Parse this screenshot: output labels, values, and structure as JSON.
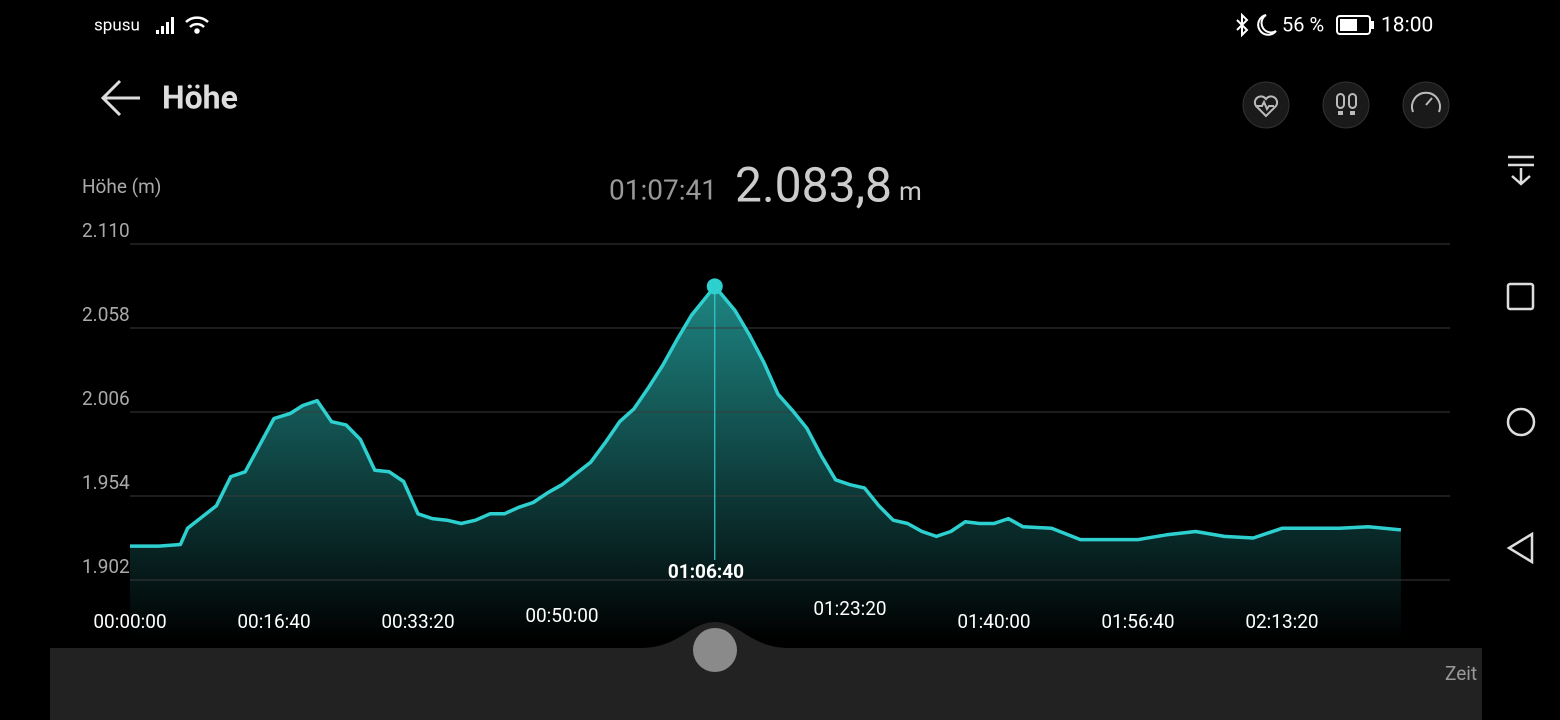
{
  "status_bar": {
    "carrier": "spusu",
    "battery": "56 %",
    "time": "18:00"
  },
  "header": {
    "title": "Höhe"
  },
  "readout": {
    "time_label": "01:07:41",
    "value_label": "2.083,8",
    "unit": "m"
  },
  "chart_data": {
    "type": "area",
    "y_label": "Höhe (m)",
    "x_label": "Zeit",
    "color": "#2ecfcf",
    "x": [
      0,
      200,
      350,
      400,
      600,
      700,
      800,
      1000,
      1111,
      1200,
      1300,
      1400,
      1500,
      1600,
      1700,
      1800,
      1900,
      2000,
      2100,
      2200,
      2300,
      2400,
      2500,
      2600,
      2700,
      2800,
      2900,
      3000,
      3100,
      3200,
      3300,
      3400,
      3500,
      3600,
      3700,
      3800,
      3900,
      4000,
      4061,
      4200,
      4300,
      4400,
      4500,
      4600,
      4700,
      4800,
      4900,
      5000,
      5100,
      5200,
      5300,
      5400,
      5500,
      5600,
      5700,
      5800,
      5900,
      6000,
      6100,
      6200,
      6400,
      6600,
      6800,
      7000,
      7200,
      7400,
      7600,
      7800,
      8000,
      8200,
      8400,
      8600,
      8826
    ],
    "values": [
      1923,
      1923,
      1924,
      1934,
      1948,
      1966,
      1969,
      2002,
      2005,
      2010,
      2013,
      2000,
      1998,
      1989,
      1970,
      1969,
      1963,
      1943,
      1940,
      1939,
      1937,
      1939,
      1943,
      1943,
      1947,
      1950,
      1956,
      1961,
      1968,
      1975,
      1987,
      2000,
      2008,
      2021,
      2035,
      2051,
      2066,
      2077,
      2083.8,
      2069,
      2054,
      2037,
      2017,
      2007,
      1996,
      1979,
      1964,
      1961,
      1959,
      1948,
      1939,
      1937,
      1932,
      1929,
      1932,
      1938,
      1937,
      1937,
      1940,
      1935,
      1934,
      1927,
      1927,
      1927,
      1930,
      1932,
      1929,
      1928,
      1934,
      1934,
      1934,
      1935,
      1933
    ],
    "xlim": [
      0,
      9167
    ],
    "ylim": [
      1902,
      2110
    ],
    "xticks": [
      {
        "value": 0,
        "label": "00:00:00"
      },
      {
        "value": 1000,
        "label": "00:16:40"
      },
      {
        "value": 2000,
        "label": "00:33:20"
      },
      {
        "value": 3000,
        "label": "00:50:00"
      },
      {
        "value": 4000,
        "label": "01:06:40"
      },
      {
        "value": 5000,
        "label": "01:23:20"
      },
      {
        "value": 6000,
        "label": "01:40:00"
      },
      {
        "value": 7000,
        "label": "01:56:40"
      },
      {
        "value": 8000,
        "label": "02:13:20"
      }
    ],
    "yticks": [
      {
        "value": 1902,
        "label": "1.902"
      },
      {
        "value": 1954,
        "label": "1.954"
      },
      {
        "value": 2006,
        "label": "2.006"
      },
      {
        "value": 2058,
        "label": "2.058"
      },
      {
        "value": 2110,
        "label": "2.110"
      }
    ],
    "grid": true
  }
}
